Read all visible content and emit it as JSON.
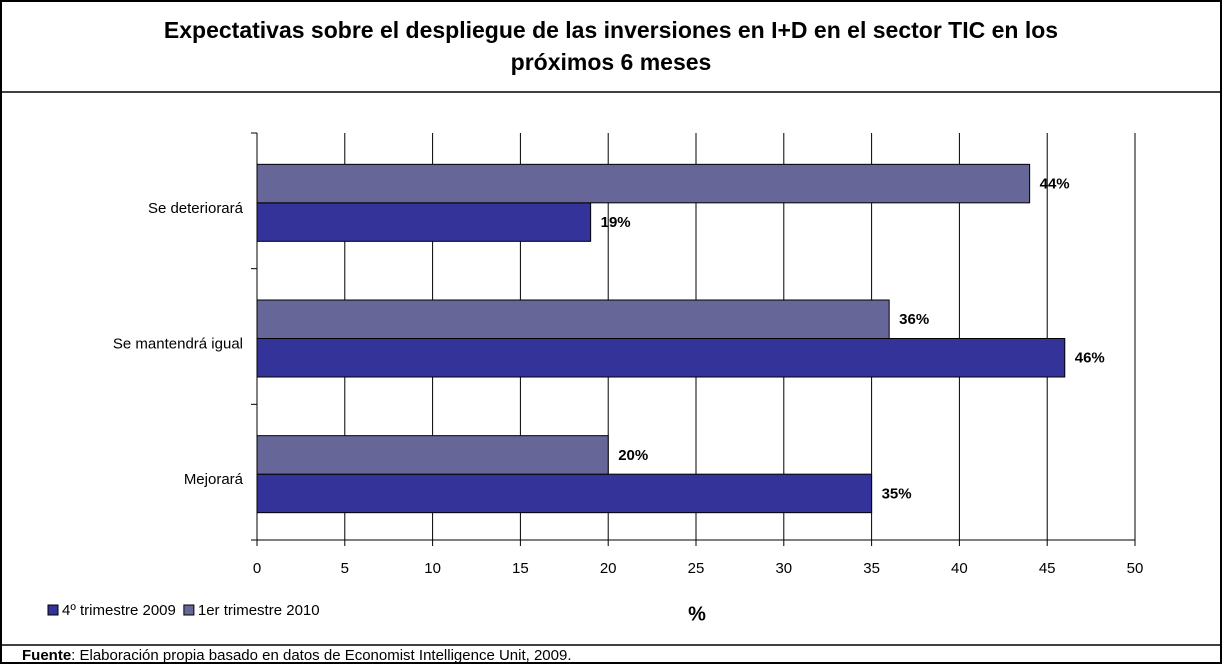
{
  "chart_data": {
    "type": "hbar",
    "title": "Expectativas sobre el despliegue de las inversiones en I+D en el sector TIC en los próximos 6 meses",
    "categories": [
      "Se deteriorará",
      "Se mantendrá igual",
      "Mejorará"
    ],
    "series": [
      {
        "name": "4º trimestre 2009",
        "color": "#333399",
        "values": [
          19,
          46,
          35
        ],
        "value_labels": [
          "19%",
          "46%",
          "35%"
        ]
      },
      {
        "name": "1er trimestre 2010",
        "color": "#666699",
        "values": [
          44,
          36,
          20
        ],
        "value_labels": [
          "44%",
          "36%",
          "20%"
        ]
      }
    ],
    "xlabel": "%",
    "xlim": [
      0,
      50
    ],
    "xticks": [
      0,
      5,
      10,
      15,
      20,
      25,
      30,
      35,
      40,
      45,
      50
    ],
    "grid": true,
    "legend": "bottom-left",
    "source_label": "Fuente",
    "source": ": Elaboración propia basado en datos de Economist Intelligence Unit, 2009."
  }
}
